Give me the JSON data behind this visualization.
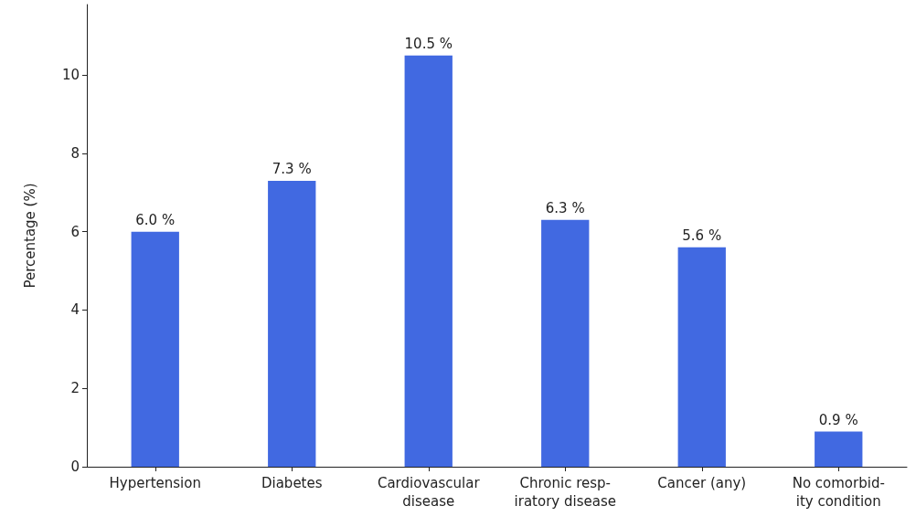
{
  "chart_data": {
    "type": "bar",
    "ylabel": "Percentage (%)",
    "categories": [
      "Hypertension",
      "Diabetes",
      "Cardiovascular\ndisease",
      "Chronic resp-\niratory disease",
      "Cancer (any)",
      "No comorbid-\nity condition"
    ],
    "values": [
      6.0,
      7.3,
      10.5,
      6.3,
      5.6,
      0.9
    ],
    "value_labels": [
      "6.0 %",
      "7.3 %",
      "10.5 %",
      "6.3 %",
      "5.6 %",
      "0.9 %"
    ],
    "color": "#4169e1",
    "ylim": [
      0,
      11.8
    ],
    "yticks": [
      0,
      2,
      4,
      6,
      8,
      10
    ],
    "grid": false
  }
}
